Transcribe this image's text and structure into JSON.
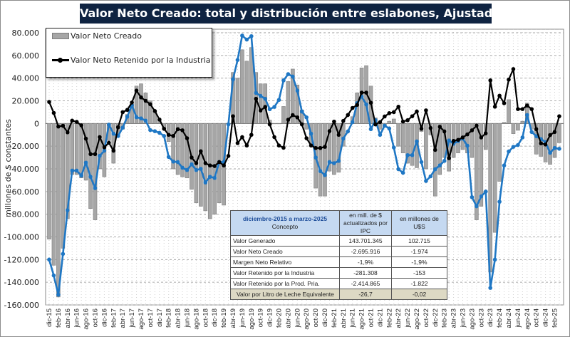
{
  "title": "Valor Neto Creado: total y distribución  entre eslabones,  Ajustado  por IPC",
  "chart_data": {
    "type": "bar+line",
    "title": "Valor Neto Creado: total y distribución  entre eslabones,  Ajustado  por IPC",
    "ylabel": "millones de $ constantes",
    "xlabel": "",
    "ylim": [
      -160000,
      80000
    ],
    "y_ticks": [
      "80.000",
      "60.000",
      "40.000",
      "20.000",
      "0",
      "-20.000",
      "-40.000",
      "-60.000",
      "-80.000",
      "-100.000",
      "-120.000",
      "-140.000",
      "-160.000"
    ],
    "y_tick_values": [
      80000,
      60000,
      40000,
      20000,
      0,
      -20000,
      -40000,
      -60000,
      -80000,
      -100000,
      -120000,
      -140000,
      -160000
    ],
    "grid": true,
    "legend_position": "top-left",
    "categories": [
      "dic-15",
      "ene-16",
      "feb-16",
      "mar-16",
      "abr-16",
      "may-16",
      "jun-16",
      "jul-16",
      "ago-16",
      "sep-16",
      "oct-16",
      "nov-16",
      "dic-16",
      "ene-17",
      "feb-17",
      "mar-17",
      "abr-17",
      "may-17",
      "jun-17",
      "jul-17",
      "ago-17",
      "sep-17",
      "oct-17",
      "nov-17",
      "dic-17",
      "ene-18",
      "feb-18",
      "mar-18",
      "abr-18",
      "may-18",
      "jun-18",
      "jul-18",
      "ago-18",
      "sep-18",
      "oct-18",
      "nov-18",
      "dic-18",
      "ene-19",
      "feb-19",
      "mar-19",
      "abr-19",
      "may-19",
      "jun-19",
      "jul-19",
      "ago-19",
      "sep-19",
      "oct-19",
      "nov-19",
      "dic-19",
      "ene-20",
      "feb-20",
      "mar-20",
      "abr-20",
      "may-20",
      "jun-20",
      "jul-20",
      "ago-20",
      "sep-20",
      "oct-20",
      "nov-20",
      "dic-20",
      "ene-21",
      "feb-21",
      "mar-21",
      "abr-21",
      "may-21",
      "jun-21",
      "jul-21",
      "ago-21",
      "sep-21",
      "oct-21",
      "nov-21",
      "dic-21",
      "ene-22",
      "feb-22",
      "mar-22",
      "abr-22",
      "may-22",
      "jun-22",
      "jul-22",
      "ago-22",
      "sep-22",
      "oct-22",
      "nov-22",
      "dic-22",
      "ene-23",
      "feb-23",
      "mar-23",
      "abr-23",
      "may-23",
      "jun-23",
      "jul-23",
      "ago-23",
      "sep-23",
      "oct-23",
      "nov-23",
      "dic-23",
      "ene-24",
      "feb-24",
      "mar-24",
      "abr-24",
      "may-24",
      "jun-24",
      "jul-24",
      "ago-24",
      "sep-24",
      "oct-24",
      "nov-24",
      "dic-24",
      "ene-25",
      "feb-25",
      "mar-25"
    ],
    "series": [
      {
        "name": "Valor Neto Creado",
        "kind": "bar",
        "color": "#a6a6a6",
        "values": [
          -102000,
          -125000,
          -153000,
          -110000,
          -84000,
          -45000,
          -45000,
          -48000,
          -50000,
          -75000,
          -85000,
          -40000,
          -47000,
          -15000,
          -35000,
          -12000,
          -5000,
          8000,
          17000,
          33000,
          35000,
          27000,
          20000,
          11000,
          3000,
          -5000,
          -16000,
          -40000,
          -45000,
          -47000,
          -48000,
          -58000,
          -70000,
          -73000,
          -77000,
          -84000,
          -80000,
          -70000,
          -72000,
          -1000,
          45000,
          40000,
          65000,
          55000,
          67000,
          45000,
          35000,
          35000,
          3000,
          0,
          0,
          15000,
          37000,
          48000,
          34000,
          12000,
          -5000,
          -20000,
          -57000,
          -64000,
          -64000,
          -42000,
          -45000,
          -43000,
          -20000,
          0,
          6000,
          27000,
          49000,
          51000,
          33000,
          5000,
          -5000,
          -3000,
          2000,
          4000,
          -20000,
          -26000,
          -35000,
          -37000,
          -39000,
          -7000,
          -40000,
          -10000,
          -64000,
          -45000,
          -30000,
          -42000,
          -30000,
          -26000,
          -23000,
          -26000,
          -30000,
          -85000,
          -73000,
          -23000,
          -131000,
          -96000,
          -51000,
          1000,
          21000,
          -9000,
          -6000,
          2000,
          18000,
          -5000,
          -27000,
          -29000,
          -34000,
          -36000,
          -30000,
          -17000
        ]
      },
      {
        "name": "Valor Neto Retenido por la Industria",
        "kind": "line",
        "color": "#000000",
        "values": [
          19000,
          9300,
          -2700,
          -2000,
          -7800,
          2500,
          1400,
          -1600,
          -13400,
          -27000,
          -27000,
          -12000,
          -21000,
          -17000,
          -24000,
          -3300,
          10000,
          12000,
          18500,
          29000,
          23000,
          20000,
          17000,
          11000,
          3500,
          -4700,
          -10000,
          -11000,
          -5000,
          -6000,
          -13000,
          -30000,
          -35000,
          -24500,
          -35000,
          -37000,
          -37500,
          -34000,
          -37000,
          -28600,
          6400,
          -17300,
          -12000,
          -19400,
          -10000,
          21800,
          11500,
          14600,
          -800,
          -12000,
          -19400,
          -21400,
          3300,
          7400,
          5400,
          -800,
          -13000,
          -19400,
          -21600,
          -21600,
          -20600,
          -6700,
          1700,
          -10000,
          2300,
          7500,
          13700,
          16400,
          27200,
          27200,
          18300,
          -800,
          1200,
          6200,
          9100,
          10000,
          14800,
          1700,
          2900,
          6400,
          10600,
          -4600,
          11600,
          -4000,
          -23300,
          -2900,
          -7000,
          -30600,
          -15400,
          -14400,
          -12300,
          -9600,
          -6000,
          -1900,
          -12300,
          -8700,
          38000,
          14800,
          24500,
          17900,
          38700,
          48000,
          12700,
          12700,
          15800,
          12700,
          -5000,
          -17500,
          -18500,
          -10200,
          -7500,
          6400
        ]
      },
      {
        "kind": "line",
        "color": "#1f77c4",
        "values": [
          -120000,
          -134000,
          -151000,
          -115000,
          -76500,
          -41500,
          -41500,
          -46000,
          -34500,
          -47000,
          -57000,
          -28500,
          -24000,
          -1000,
          -9000,
          -11000,
          -3700,
          6000,
          16000,
          5500,
          4500,
          2500,
          -5800,
          -6800,
          -8200,
          -11000,
          -29500,
          -33600,
          -34000,
          -39000,
          -41000,
          -36000,
          -41000,
          -40000,
          -52000,
          -47000,
          -48000,
          -34000,
          -34000,
          -800,
          39000,
          56000,
          77500,
          74000,
          77000,
          27000,
          24300,
          21800,
          12600,
          14600,
          20800,
          38000,
          43500,
          41400,
          29000,
          10500,
          5400,
          -9000,
          -30000,
          -42000,
          -45500,
          -34000,
          -35000,
          -33000,
          -13300,
          -7000,
          1200,
          17900,
          23700,
          16800,
          -5000,
          2900,
          -10000,
          -1900,
          -4400,
          -21200,
          -40300,
          -43500,
          -27900,
          -27900,
          -15800,
          -34000,
          -50700,
          -46600,
          -40300,
          -37000,
          -33000,
          -15000,
          -17900,
          -15400,
          -13300,
          -19600,
          -65000,
          -73000,
          -64300,
          -60000,
          -145000,
          -120000,
          -69000,
          -37000,
          -24700,
          -20600,
          -19000,
          -12300,
          7500,
          -7500,
          -11200,
          -13700,
          -16400,
          -25800,
          -21600,
          -22300
        ]
      }
    ]
  },
  "legend": {
    "bar_label": "Valor Neto Creado",
    "line_label": "Valor Neto Retenido por la Industria"
  },
  "summary_table": {
    "period": "diciembre-2015 a marzo-2025",
    "concept_header": "Concepto",
    "col1_header": "en mill. de $ actualizados por IPC",
    "col2_header": "en millones de U$S",
    "rows": [
      {
        "label": "Valor Generado",
        "pesos": "143.701.345",
        "usd": "102.715"
      },
      {
        "label": "Valor Neto Creado",
        "pesos": "-2.695.916",
        "usd": "-1.974"
      },
      {
        "label": "Margen Neto Relativo",
        "pesos": "-1,9%",
        "usd": "-1,9%"
      },
      {
        "label": "Valor Retenido por la Industria",
        "pesos": "-281.308",
        "usd": "-153"
      },
      {
        "label": "Valor Retenido por la Prod. Pria.",
        "pesos": "-2.414.865",
        "usd": "-1.822"
      },
      {
        "label": "Valor por Litro de Leche Equivalente",
        "pesos": "-26,7",
        "usd": "-0,02"
      }
    ],
    "header_color": "#c5d9f1",
    "last_row_color": "#ddd9c4"
  }
}
